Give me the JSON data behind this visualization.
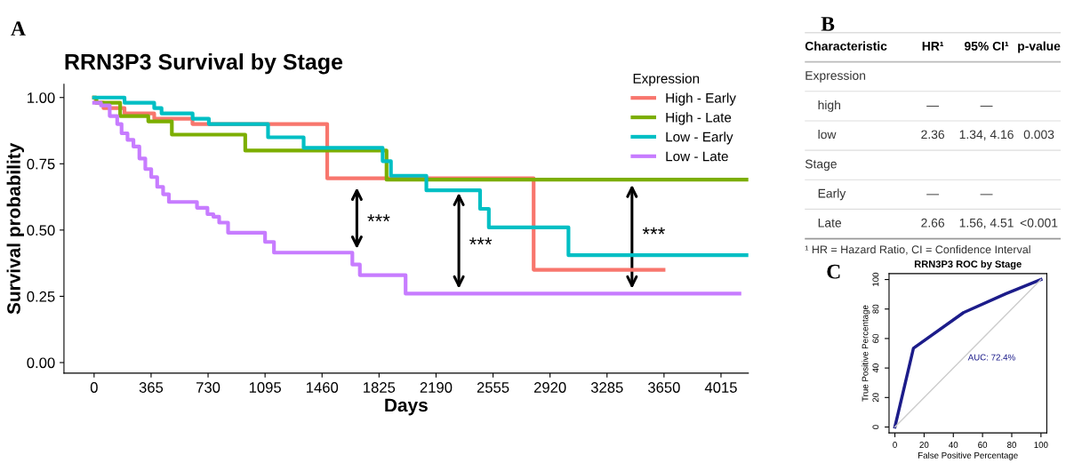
{
  "chart_data": [
    {
      "type": "step",
      "title": "RRN3P3 Survival by Stage",
      "xlabel": "Days",
      "ylabel": "Survival probability",
      "legend_title": "Expression",
      "legend": "top right",
      "xlim": [
        -193,
        4190
      ],
      "ylim": [
        -0.04,
        1.05
      ],
      "xticks": [
        0,
        365,
        730,
        1095,
        1460,
        1825,
        2190,
        2555,
        2920,
        3285,
        3650,
        4015
      ],
      "yticks": [
        {
          "value": 0,
          "label": "0.00"
        },
        {
          "value": 0.25,
          "label": "0.25"
        },
        {
          "value": 0.5,
          "label": "0.50"
        },
        {
          "value": 0.75,
          "label": "0.75"
        },
        {
          "value": 1,
          "label": "1.00"
        }
      ],
      "series": [
        {
          "name": "High - Early",
          "color": "#f8766d",
          "x": [
            0,
            10,
            60,
            195,
            385,
            630,
            1493,
            2815,
            3647
          ],
          "values": [
            1.0,
            0.98,
            0.96,
            0.94,
            0.92,
            0.9,
            0.695,
            0.35,
            0.35
          ]
        },
        {
          "name": "High - Late",
          "color": "#7cae00",
          "x": [
            0,
            15,
            167,
            347,
            498,
            968,
            1873,
            4190
          ],
          "values": [
            1.0,
            0.98,
            0.93,
            0.91,
            0.86,
            0.8,
            0.69,
            0.69
          ]
        },
        {
          "name": "Low - Early",
          "color": "#00bfc4",
          "x": [
            0,
            195,
            385,
            432,
            631,
            735,
            1114,
            1342,
            1848,
            1901,
            2128,
            2472,
            2528,
            3038,
            4190
          ],
          "values": [
            1.0,
            0.98,
            0.96,
            0.94,
            0.92,
            0.9,
            0.85,
            0.81,
            0.76,
            0.705,
            0.65,
            0.58,
            0.51,
            0.405,
            0.405
          ]
        },
        {
          "name": "Low - Late",
          "color": "#c77cff",
          "x": [
            0,
            44,
            100,
            148,
            176,
            214,
            252,
            290,
            328,
            366,
            404,
            442,
            479,
            659,
            726,
            764,
            801,
            858,
            1095,
            1152,
            1654,
            1702,
            1995,
            4133
          ],
          "values": [
            0.98,
            0.97,
            0.93,
            0.9,
            0.865,
            0.84,
            0.815,
            0.77,
            0.73,
            0.7,
            0.663,
            0.635,
            0.606,
            0.584,
            0.56,
            0.55,
            0.528,
            0.49,
            0.455,
            0.415,
            0.37,
            0.33,
            0.26,
            0.26
          ]
        }
      ],
      "annotations": [
        "A",
        "***",
        "***",
        "***"
      ]
    },
    {
      "type": "other",
      "categories": [
        "Characteristic",
        "HR¹",
        "95% CI¹",
        "p-value"
      ],
      "y_categories": [
        "Expression",
        "high",
        "low",
        "Stage",
        "Early",
        "Late"
      ],
      "cell_labels": [
        [
          null,
          null,
          null
        ],
        [
          "—",
          "—",
          null
        ],
        [
          "2.36",
          "1.34, 4.16",
          "0.003"
        ],
        [
          null,
          null,
          null
        ],
        [
          "—",
          "—",
          null
        ],
        [
          "2.66",
          "1.56, 4.51",
          "<0.001"
        ]
      ],
      "annotations": [
        "B",
        "¹ HR = Hazard Ratio, CI = Confidence Interval"
      ]
    },
    {
      "type": "line",
      "title": "RRN3P3 ROC by Stage",
      "xlabel": "False Positive Percentage",
      "ylabel": "True Positive Percentage",
      "xlim": [
        -4,
        104
      ],
      "ylim": [
        -4,
        104
      ],
      "xticks": [
        0,
        20,
        40,
        60,
        80,
        100
      ],
      "yticks": [
        0,
        20,
        40,
        60,
        80,
        100
      ],
      "series": [
        {
          "color": "#1c1c8a",
          "x": [
            0,
            12.7,
            47,
            75.8,
            100
          ],
          "values": [
            0,
            53.4,
            77.6,
            90.3,
            100
          ]
        },
        {
          "color": "#cccccc",
          "x": [
            0,
            100
          ],
          "values": [
            0,
            100
          ]
        }
      ],
      "annotations": [
        "C",
        "AUC: 72.4%"
      ]
    }
  ]
}
